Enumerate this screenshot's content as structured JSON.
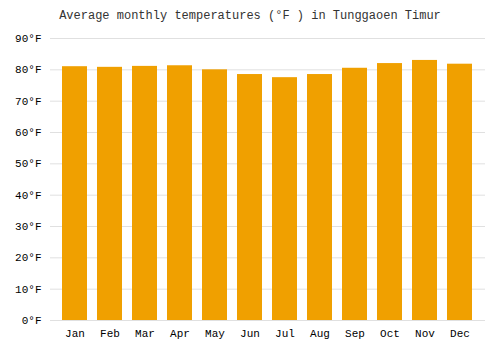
{
  "chart_data": {
    "type": "bar",
    "title": "Average monthly temperatures (°F ) in Tunggaoen Timur",
    "categories": [
      "Jan",
      "Feb",
      "Mar",
      "Apr",
      "May",
      "Jun",
      "Jul",
      "Aug",
      "Sep",
      "Oct",
      "Nov",
      "Dec"
    ],
    "values": [
      81.0,
      80.8,
      81.1,
      81.3,
      80.0,
      78.5,
      77.5,
      78.5,
      80.5,
      82.0,
      83.0,
      81.8
    ],
    "color": "#F0A000",
    "ylim": [
      0,
      90
    ],
    "yticks": [
      {
        "value": 0,
        "label": "0°F"
      },
      {
        "value": 10,
        "label": "10°F"
      },
      {
        "value": 20,
        "label": "20°F"
      },
      {
        "value": 30,
        "label": "30°F"
      },
      {
        "value": 40,
        "label": "40°F"
      },
      {
        "value": 50,
        "label": "50°F"
      },
      {
        "value": 60,
        "label": "60°F"
      },
      {
        "value": 70,
        "label": "70°F"
      },
      {
        "value": 80,
        "label": "80°F"
      },
      {
        "value": 90,
        "label": "90°F"
      }
    ],
    "grid": true
  }
}
